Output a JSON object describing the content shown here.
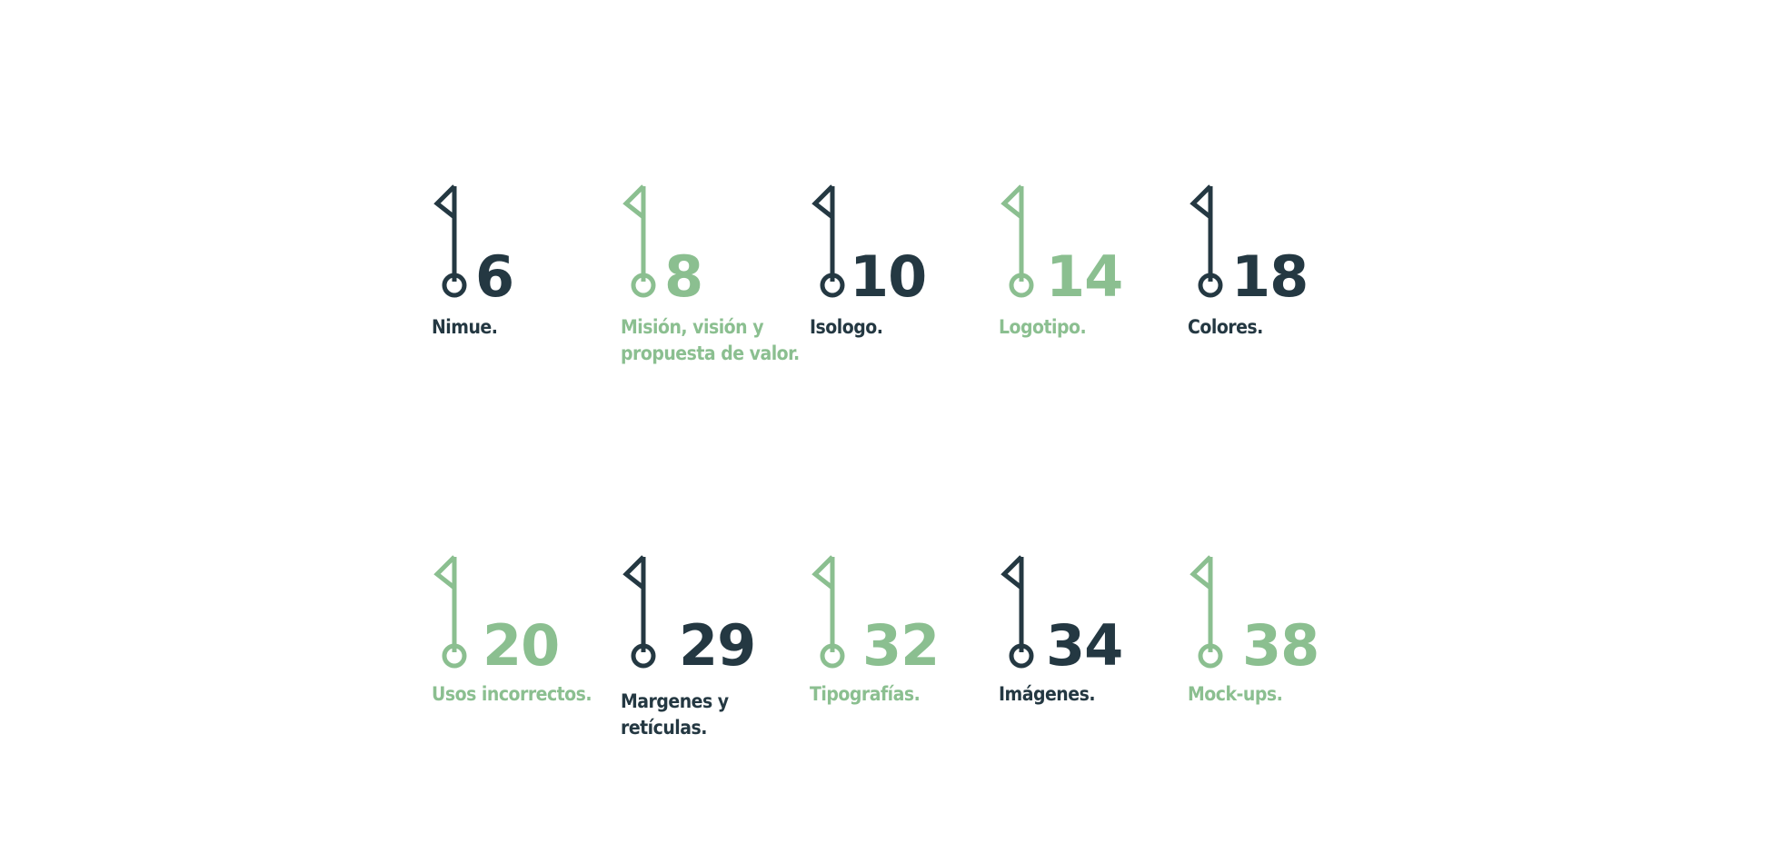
{
  "colors": {
    "dark": "#243842",
    "green": "#8bbf90",
    "background": "#ffffff"
  },
  "icon": "flag-pin-icon",
  "entries": [
    {
      "number": "6",
      "title": "Nimue.",
      "color": "dark"
    },
    {
      "number": "8",
      "title": "Misión, visión y\npropuesta de valor.",
      "color": "green"
    },
    {
      "number": "10",
      "title": "Isologo.",
      "color": "dark"
    },
    {
      "number": "14",
      "title": "Logotipo.",
      "color": "green"
    },
    {
      "number": "18",
      "title": "Colores.",
      "color": "dark"
    },
    {
      "number": "20",
      "title": "Usos incorrectos.",
      "color": "green"
    },
    {
      "number": "29",
      "title": "Margenes y\nretículas.",
      "color": "dark"
    },
    {
      "number": "32",
      "title": "Tipografías.",
      "color": "green"
    },
    {
      "number": "34",
      "title": "Imágenes.",
      "color": "dark"
    },
    {
      "number": "38",
      "title": "Mock-ups.",
      "color": "green"
    }
  ]
}
